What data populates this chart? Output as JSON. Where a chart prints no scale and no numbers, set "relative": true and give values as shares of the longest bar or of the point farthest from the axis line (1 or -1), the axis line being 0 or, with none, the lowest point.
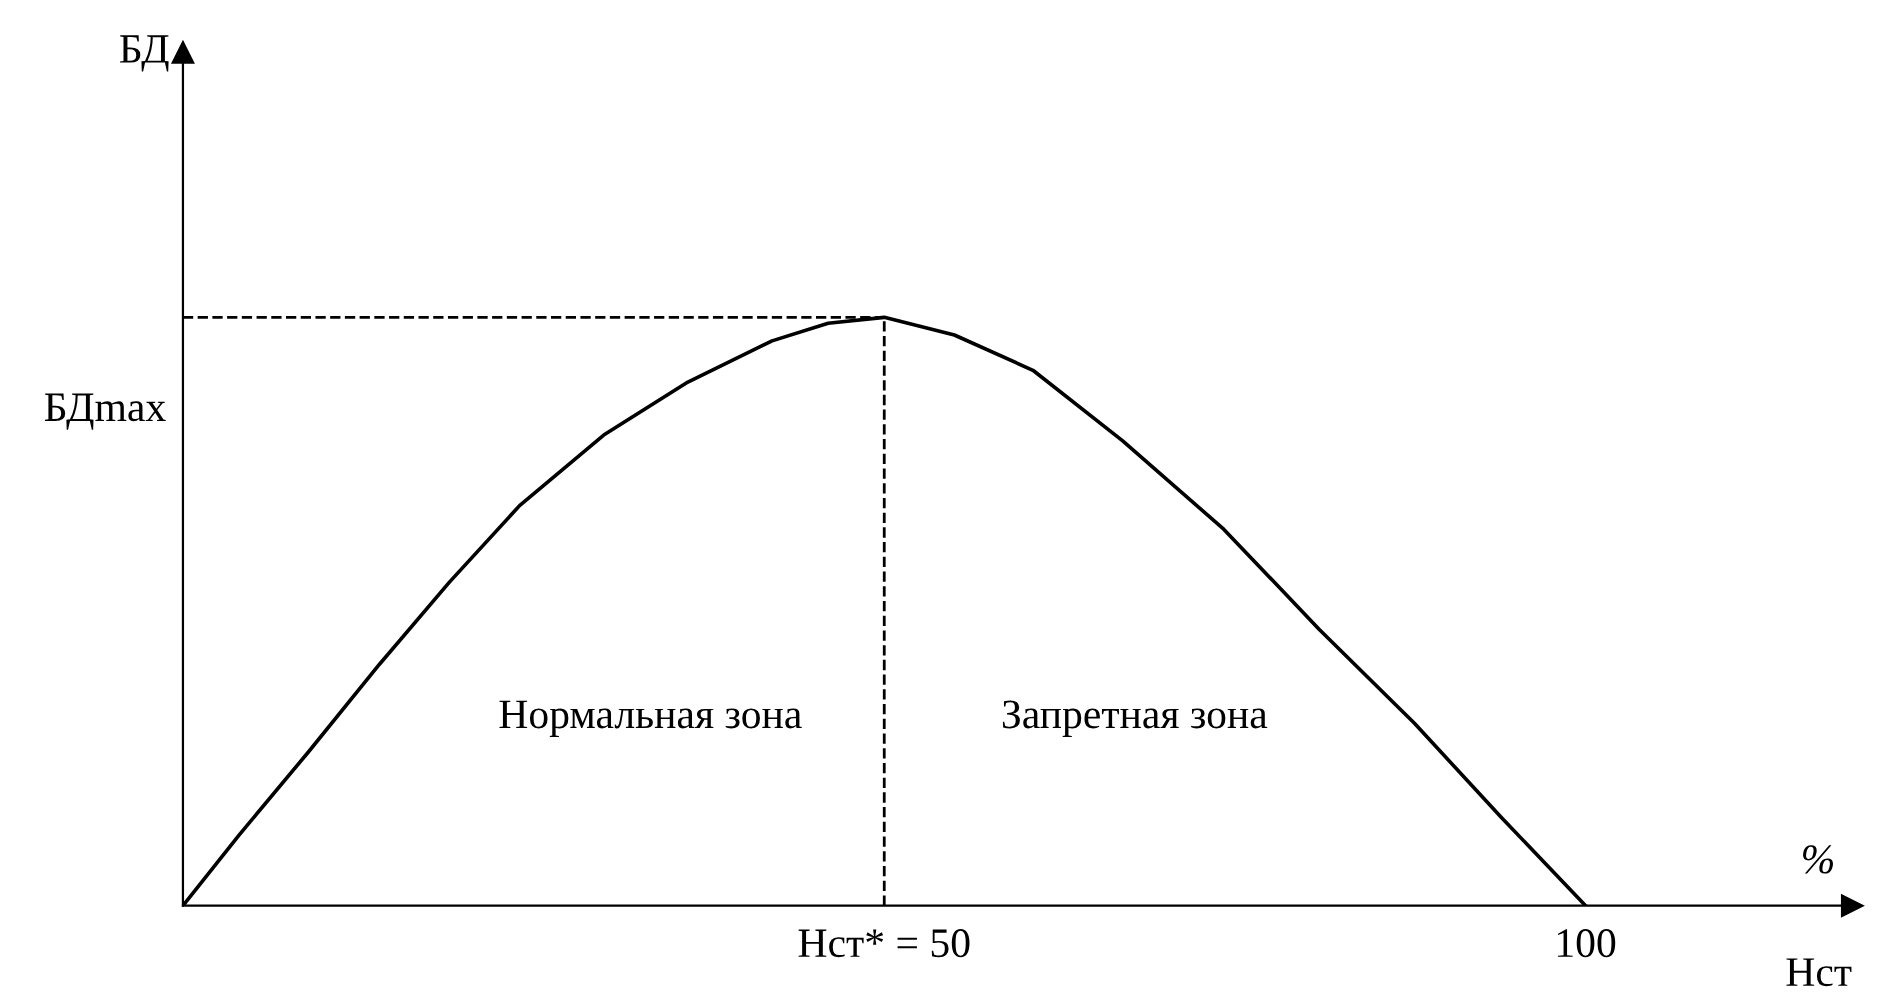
{
  "chart_data": {
    "type": "line",
    "relative": true,
    "xlabel": "Нст",
    "x": [
      0,
      4,
      8.9,
      14,
      19,
      24,
      30,
      36,
      42,
      46,
      50,
      55,
      60.6,
      67,
      74.2,
      81,
      87.8,
      94,
      100
    ],
    "series": [
      {
        "color": "#000000",
        "values": [
          0,
          0.12,
          0.26,
          0.41,
          0.55,
          0.68,
          0.8,
          0.89,
          0.96,
          0.99,
          1,
          0.97,
          0.91,
          0.79,
          0.64,
          0.47,
          0.31,
          0.15,
          0
        ]
      }
    ],
    "xlim": [
      0,
      119
    ],
    "xticks": [
      {
        "value": 50,
        "label": "Нст* = 50"
      },
      100
    ],
    "ref_lines": [
      {
        "axis": "x",
        "value": 50,
        "color": "#000000",
        "line_style": "dashed"
      },
      {
        "axis": "y",
        "value": 1,
        "color": "#000000",
        "line_style": "dashed"
      }
    ],
    "annotations": [
      "БДmax",
      "Нормальная зона",
      "Запретная зона",
      "%",
      "БД"
    ],
    "grid": false,
    "marker": "none",
    "line_style": "solid"
  }
}
